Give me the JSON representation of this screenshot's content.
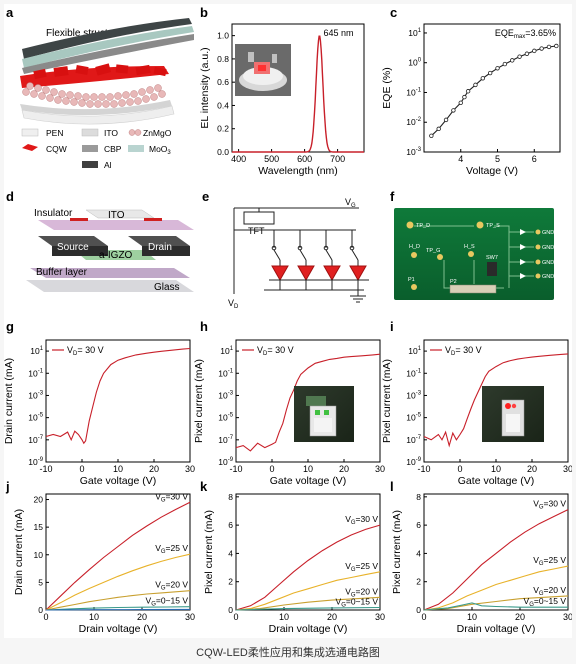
{
  "caption": "CQW-LED柔性应用和集成选通电路图",
  "panel_letters": [
    "a",
    "b",
    "c",
    "d",
    "e",
    "f",
    "g",
    "h",
    "i",
    "j",
    "k",
    "l"
  ],
  "panel_a": {
    "title": "Flexible structure",
    "legend": [
      {
        "label": "PEN",
        "color": "#efefef"
      },
      {
        "label": "ITO",
        "color": "#dcdcdc"
      },
      {
        "label": "ZnMgO",
        "color": "#e8b8b8"
      },
      {
        "label": "CQW",
        "color": "#e01818"
      },
      {
        "label": "CBP",
        "color": "#9a9a9a"
      },
      {
        "label": "MoO3",
        "color": "#b9d4d0"
      },
      {
        "label": "Al",
        "color": "#404040"
      }
    ]
  },
  "panel_d": {
    "labels": {
      "insulator": "Insulator",
      "ito": "ITO",
      "source": "Source",
      "drain": "Drain",
      "channel": "a-IGZO",
      "buffer": "Buffer layer",
      "glass": "Glass"
    }
  },
  "panel_e": {
    "labels": {
      "vg": "V",
      "vg_sub": "G",
      "vd": "V",
      "vd_sub": "D",
      "tft": "TFT"
    }
  },
  "panel_f": {
    "labels": [
      "TP_D",
      "TP_S",
      "H_D",
      "TP_G",
      "H_S",
      "SW7",
      "P2",
      "P1",
      "GND",
      "GND",
      "GND",
      "GND"
    ]
  },
  "chart_data": [
    {
      "panel": "b",
      "type": "line",
      "xlabel": "Wavelength (nm)",
      "ylabel": "EL intensity (a.u.)",
      "xlim": [
        380,
        780
      ],
      "ylim": [
        0,
        1.1
      ],
      "xticks": [
        400,
        500,
        600,
        700
      ],
      "yticks": [
        "0.0",
        "0.2",
        "0.4",
        "0.6",
        "0.8",
        "1.0"
      ],
      "annotation": "645 nm",
      "series": [
        {
          "peak": 645,
          "fwhm": 24,
          "x": [
            400,
            450,
            500,
            550,
            580,
            600,
            610,
            620,
            630,
            635,
            640,
            645,
            650,
            655,
            660,
            670,
            680,
            700,
            750
          ],
          "y": [
            0,
            0,
            0,
            0,
            0.005,
            0.04,
            0.1,
            0.25,
            0.55,
            0.75,
            0.93,
            1.0,
            0.93,
            0.75,
            0.55,
            0.22,
            0.08,
            0.01,
            0
          ]
        }
      ]
    },
    {
      "panel": "c",
      "type": "line",
      "xlabel": "Voltage (V)",
      "ylabel": "EQE (%)",
      "xlim": [
        3,
        6.7
      ],
      "ylog": true,
      "ylim": [
        0.001,
        20
      ],
      "xticks": [
        4,
        5,
        6
      ],
      "yticks": [
        "10-3",
        "10-2",
        "10-1",
        "100",
        "101"
      ],
      "annotation": "EQEmax=3.65%",
      "series": [
        {
          "x": [
            3.2,
            3.4,
            3.6,
            3.8,
            4.0,
            4.1,
            4.2,
            4.4,
            4.6,
            4.8,
            5.0,
            5.2,
            5.4,
            5.6,
            5.8,
            6.0,
            6.2,
            6.4,
            6.6
          ],
          "y": [
            0.0035,
            0.006,
            0.012,
            0.025,
            0.045,
            0.07,
            0.11,
            0.18,
            0.3,
            0.45,
            0.65,
            0.9,
            1.2,
            1.6,
            2.0,
            2.5,
            3.0,
            3.4,
            3.65
          ]
        }
      ]
    },
    {
      "panel": "g",
      "type": "line",
      "xlabel": "Gate voltage (V)",
      "ylabel": "Drain current (mA)",
      "xlim": [
        -10,
        30
      ],
      "ylog": true,
      "ylim": [
        1e-09,
        100
      ],
      "xticks": [
        -10,
        0,
        10,
        20,
        30
      ],
      "yticks": [
        "10-9",
        "10-7",
        "10-5",
        "10-3",
        "10-1",
        "101"
      ],
      "legend": "VD= 30 V",
      "series": [
        {
          "x": [
            -10,
            -8,
            -6,
            -4,
            -3,
            -2,
            -1,
            0,
            0.5,
            1,
            2,
            3,
            4,
            5,
            6,
            8,
            10,
            12,
            15,
            18,
            20,
            22,
            25,
            28,
            30
          ],
          "y": [
            2e-07,
            3e-07,
            2e-07,
            5e-07,
            1e-07,
            6e-07,
            3e-07,
            1e-07,
            5e-08,
            8e-08,
            5e-06,
            0.0001,
            0.002,
            0.02,
            0.1,
            0.6,
            1.5,
            2.5,
            4.5,
            6.5,
            8,
            9.5,
            12,
            15,
            17
          ]
        }
      ]
    },
    {
      "panel": "h",
      "type": "line",
      "xlabel": "Gate voltage (V)",
      "ylabel": "Pixel current (mA)",
      "xlim": [
        -10,
        30
      ],
      "ylog": true,
      "ylim": [
        1e-09,
        100
      ],
      "xticks": [
        -10,
        0,
        10,
        20,
        30
      ],
      "yticks": [
        "10-9",
        "10-7",
        "10-5",
        "10-3",
        "10-1",
        "101"
      ],
      "legend": "VD= 30 V",
      "series": [
        {
          "x": [
            -10,
            -8,
            -6,
            -4,
            -2,
            0,
            1,
            2,
            3,
            4,
            5,
            6,
            7,
            8,
            10,
            12,
            14,
            16,
            18,
            20,
            22,
            25,
            28,
            30
          ],
          "y": [
            2e-08,
            3e-08,
            1e-08,
            5e-08,
            2e-08,
            4e-08,
            6e-08,
            5e-07,
            3e-06,
            5e-05,
            0.0006,
            0.003,
            0.02,
            0.08,
            0.3,
            0.8,
            1.2,
            1.8,
            2.2,
            2.8,
            3.2,
            3.8,
            4.5,
            5.2
          ]
        }
      ]
    },
    {
      "panel": "i",
      "type": "line",
      "xlabel": "Gate voltage (V)",
      "ylabel": "Pixel current (mA)",
      "xlim": [
        -10,
        30
      ],
      "ylog": true,
      "ylim": [
        1e-09,
        100
      ],
      "xticks": [
        -10,
        0,
        10,
        20,
        30
      ],
      "yticks": [
        "10-9",
        "10-7",
        "10-5",
        "10-3",
        "10-1",
        "101"
      ],
      "legend": "VD= 30 V",
      "series": [
        {
          "x": [
            -10,
            -8,
            -6,
            -5,
            -4,
            -3,
            -2,
            -1,
            0,
            1,
            2,
            3,
            4,
            5,
            6,
            7,
            8,
            10,
            12,
            14,
            16,
            18,
            20,
            22,
            25,
            28,
            30
          ],
          "y": [
            2e-07,
            1e-07,
            3e-07,
            1e-07,
            5e-07,
            3e-08,
            4e-07,
            1e-07,
            3e-07,
            1e-06,
            8e-06,
            6e-05,
            0.0004,
            0.002,
            0.01,
            0.05,
            0.15,
            0.4,
            0.9,
            1.4,
            1.9,
            2.4,
            2.9,
            3.4,
            4.2,
            5.0,
            5.6
          ]
        }
      ]
    },
    {
      "panel": "j",
      "type": "line",
      "xlabel": "Drain voltage (V)",
      "ylabel": "Drain current (mA)",
      "xlim": [
        0,
        30
      ],
      "ylim": [
        0,
        21
      ],
      "xticks": [
        0,
        10,
        20,
        30
      ],
      "yticks": [
        0,
        5,
        10,
        15,
        20
      ],
      "series": [
        {
          "name": "VG=30 V",
          "color": "#c8202a",
          "x": [
            0,
            3,
            6,
            9,
            12,
            15,
            18,
            21,
            24,
            27,
            30
          ],
          "y": [
            0,
            2.5,
            5,
            7.3,
            9.5,
            11.5,
            13.5,
            15.2,
            16.8,
            18.2,
            19.5
          ]
        },
        {
          "name": "VG=25 V",
          "color": "#e8b22a",
          "x": [
            0,
            3,
            6,
            9,
            12,
            15,
            18,
            21,
            24,
            27,
            30
          ],
          "y": [
            0,
            1.3,
            2.7,
            3.9,
            5.0,
            6.1,
            7.1,
            8.0,
            8.8,
            9.5,
            10.1
          ]
        },
        {
          "name": "VG=20 V",
          "color": "#c8a030",
          "x": [
            0,
            3,
            6,
            9,
            12,
            15,
            18,
            21,
            24,
            27,
            30
          ],
          "y": [
            0,
            0.5,
            1.0,
            1.5,
            1.9,
            2.3,
            2.6,
            2.9,
            3.1,
            3.3,
            3.5
          ]
        },
        {
          "name": "VG=0~15 V",
          "color": "#3a9a8a",
          "x": [
            0,
            5,
            10,
            15,
            20,
            25,
            30
          ],
          "y": [
            0,
            0.2,
            0.35,
            0.45,
            0.5,
            0.55,
            0.6
          ]
        },
        {
          "name": "",
          "color": "#2a6ab0",
          "x": [
            0,
            10,
            20,
            30
          ],
          "y": [
            0,
            0.05,
            0.08,
            0.1
          ]
        }
      ]
    },
    {
      "panel": "k",
      "type": "line",
      "xlabel": "Drain voltage (V)",
      "ylabel": "Pixel current (mA)",
      "xlim": [
        0,
        30
      ],
      "ylim": [
        0,
        8.2
      ],
      "xticks": [
        0,
        10,
        20,
        30
      ],
      "yticks": [
        0,
        2,
        4,
        6,
        8
      ],
      "series": [
        {
          "name": "VG=30 V",
          "color": "#c8202a",
          "x": [
            0,
            3,
            6,
            9,
            12,
            15,
            18,
            21,
            24,
            27,
            30
          ],
          "y": [
            0,
            0.3,
            0.9,
            1.8,
            2.7,
            3.5,
            4.2,
            4.8,
            5.3,
            5.7,
            6.0
          ]
        },
        {
          "name": "VG=25 V",
          "color": "#e8b22a",
          "x": [
            0,
            3,
            6,
            9,
            12,
            15,
            18,
            21,
            24,
            27,
            30
          ],
          "y": [
            0,
            0.1,
            0.4,
            0.8,
            1.2,
            1.5,
            1.8,
            2.1,
            2.3,
            2.5,
            2.7
          ]
        },
        {
          "name": "VG=20 V",
          "color": "#c8a030",
          "x": [
            0,
            5,
            10,
            15,
            20,
            25,
            30
          ],
          "y": [
            0,
            0.1,
            0.35,
            0.55,
            0.7,
            0.8,
            0.9
          ]
        },
        {
          "name": "VG=0~15 V",
          "color": "#3a9a8a",
          "x": [
            0,
            10,
            20,
            30
          ],
          "y": [
            0,
            0.1,
            0.15,
            0.18
          ]
        }
      ]
    },
    {
      "panel": "l",
      "type": "line",
      "xlabel": "Drain voltage (V)",
      "ylabel": "Pixel current (mA)",
      "xlim": [
        0,
        30
      ],
      "ylim": [
        0,
        8.2
      ],
      "xticks": [
        0,
        10,
        20,
        30
      ],
      "yticks": [
        0,
        2,
        4,
        6,
        8
      ],
      "series": [
        {
          "name": "VG=30 V",
          "color": "#c8202a",
          "x": [
            0,
            3,
            6,
            9,
            12,
            15,
            18,
            21,
            24,
            27,
            30
          ],
          "y": [
            0,
            0.4,
            1.2,
            2.2,
            3.2,
            4.0,
            4.8,
            5.5,
            6.1,
            6.6,
            7.1
          ]
        },
        {
          "name": "VG=25 V",
          "color": "#e8b22a",
          "x": [
            0,
            3,
            6,
            9,
            12,
            15,
            18,
            21,
            24,
            27,
            30
          ],
          "y": [
            0,
            0.15,
            0.5,
            1.0,
            1.4,
            1.8,
            2.1,
            2.4,
            2.7,
            2.9,
            3.1
          ]
        },
        {
          "name": "VG=20 V",
          "color": "#c8a030",
          "x": [
            0,
            5,
            10,
            15,
            20,
            25,
            30
          ],
          "y": [
            0,
            0.1,
            0.4,
            0.6,
            0.8,
            0.9,
            1.0
          ]
        },
        {
          "name": "VG=0~15 V",
          "color": "#3a9a8a",
          "x": [
            0,
            5,
            8,
            10,
            12,
            15,
            20,
            30
          ],
          "y": [
            0,
            0.15,
            0.35,
            0.5,
            0.3,
            0.25,
            0.2,
            0.2
          ]
        }
      ]
    }
  ]
}
